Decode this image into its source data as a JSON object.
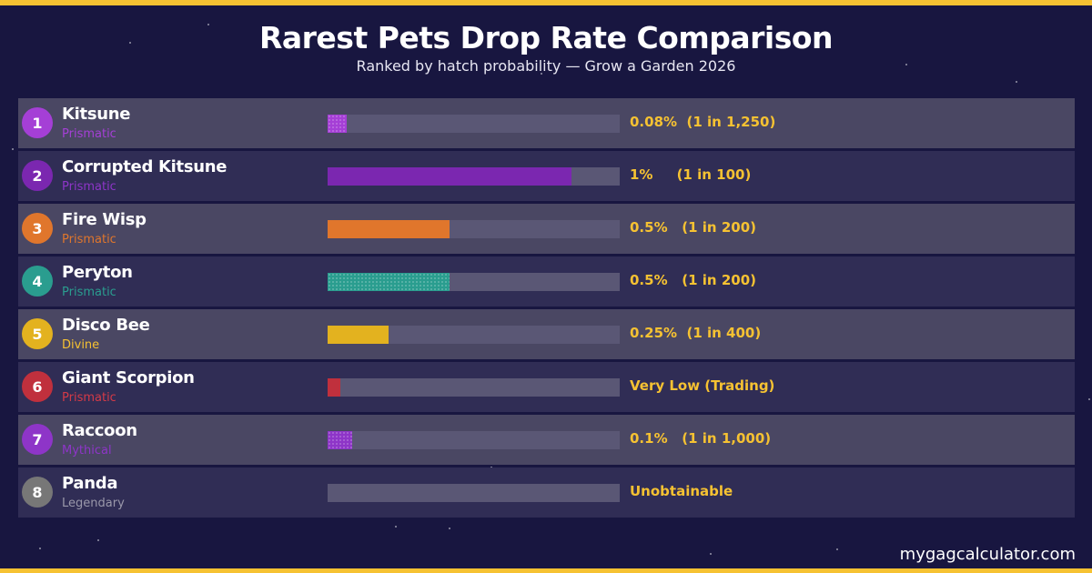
{
  "colors": {
    "background": "#181640",
    "border": "#f6c232",
    "row_light": "#4a4763",
    "row_dark": "#302d55",
    "track": "#5a5775",
    "rate_text": "#f6c232"
  },
  "header": {
    "title": "Rarest Pets Drop Rate Comparison",
    "subtitle": "Ranked by hatch probability — Grow a Garden 2026"
  },
  "footer": {
    "watermark": "mygagcalculator.com"
  },
  "chart_data": {
    "type": "bar",
    "orientation": "horizontal",
    "title": "Rarest Pets Drop Rate Comparison",
    "subtitle": "Ranked by hatch probability — Grow a Garden 2026",
    "xlim": [
      0,
      1.2
    ],
    "rows": [
      {
        "rank": "1",
        "name": "Kitsune",
        "tier": "Prismatic",
        "value": 0.08,
        "label": "0.08%  (1 in 1,250)",
        "color": "#a53fd6",
        "tier_color": "#a53fd6",
        "pattern": "speckle"
      },
      {
        "rank": "2",
        "name": "Corrupted Kitsune",
        "tier": "Prismatic",
        "value": 1.0,
        "label": "1%     (1 in 100)",
        "color": "#7b27b0",
        "tier_color": "#8e35c8",
        "pattern": "solid"
      },
      {
        "rank": "3",
        "name": "Fire Wisp",
        "tier": "Prismatic",
        "value": 0.5,
        "label": "0.5%   (1 in 200)",
        "color": "#e0762c",
        "tier_color": "#e0762c",
        "pattern": "solid"
      },
      {
        "rank": "4",
        "name": "Peryton",
        "tier": "Prismatic",
        "value": 0.5,
        "label": "0.5%   (1 in 200)",
        "color": "#2a9d8f",
        "tier_color": "#2a9d8f",
        "pattern": "speckle"
      },
      {
        "rank": "5",
        "name": "Disco Bee",
        "tier": "Divine",
        "value": 0.25,
        "label": "0.25%  (1 in 400)",
        "color": "#e3b21f",
        "tier_color": "#f6c232",
        "pattern": "solid"
      },
      {
        "rank": "6",
        "name": "Giant Scorpion",
        "tier": "Prismatic",
        "value": 0.05,
        "label": "Very Low (Trading)",
        "color": "#c0303d",
        "tier_color": "#d43a47",
        "pattern": "solid"
      },
      {
        "rank": "7",
        "name": "Raccoon",
        "tier": "Mythical",
        "value": 0.1,
        "label": "0.1%   (1 in 1,000)",
        "color": "#8e35c8",
        "tier_color": "#8e35c8",
        "pattern": "speckle"
      },
      {
        "rank": "8",
        "name": "Panda",
        "tier": "Legendary",
        "value": 0,
        "label": "Unobtainable",
        "color": "#777777",
        "tier_color": "#9a98aa",
        "pattern": "solid"
      }
    ]
  }
}
